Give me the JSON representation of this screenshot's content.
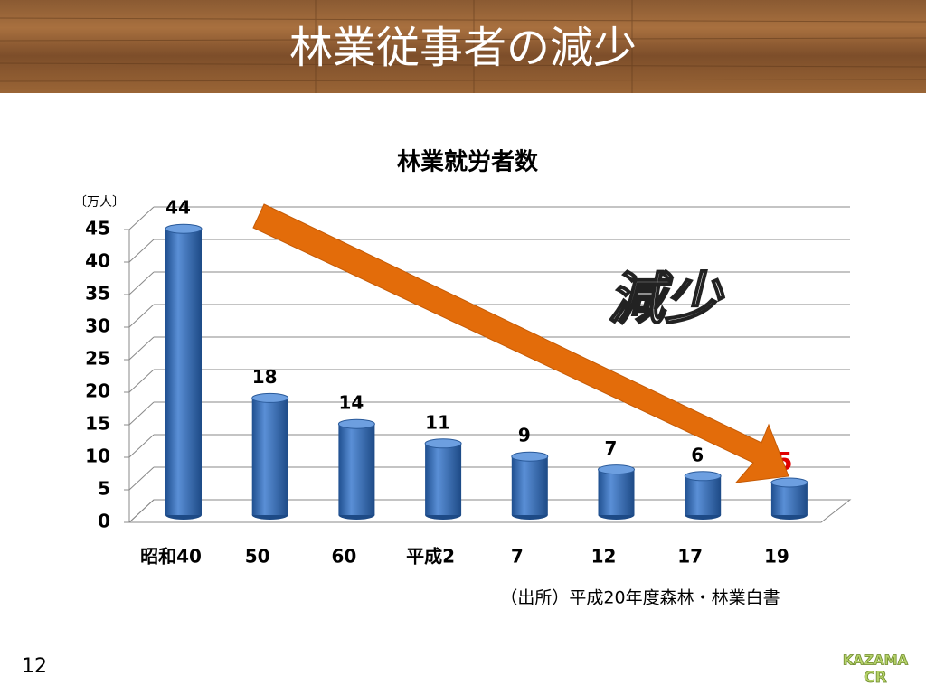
{
  "page_title": "林業従事者の減少",
  "chart_data": {
    "type": "bar",
    "title": "林業就労者数",
    "y_unit": "〔万人〕",
    "categories": [
      "昭和40",
      "50",
      "60",
      "平成2",
      "7",
      "12",
      "17",
      "19"
    ],
    "values": [
      44,
      18,
      14,
      11,
      9,
      7,
      6,
      5
    ],
    "color": "#3a6db5",
    "label_colors": [
      "#000000",
      "#000000",
      "#000000",
      "#000000",
      "#000000",
      "#000000",
      "#000000",
      "#e00000"
    ],
    "ylim": [
      0,
      45
    ],
    "yticks": [
      0,
      5,
      10,
      15,
      20,
      25,
      30,
      35,
      40,
      45
    ],
    "grid": true,
    "annotation": "減少",
    "source": "（出所）平成20年度森林・林業白書"
  },
  "page_number": "12",
  "logo": [
    "KAZAMA",
    "CR"
  ]
}
